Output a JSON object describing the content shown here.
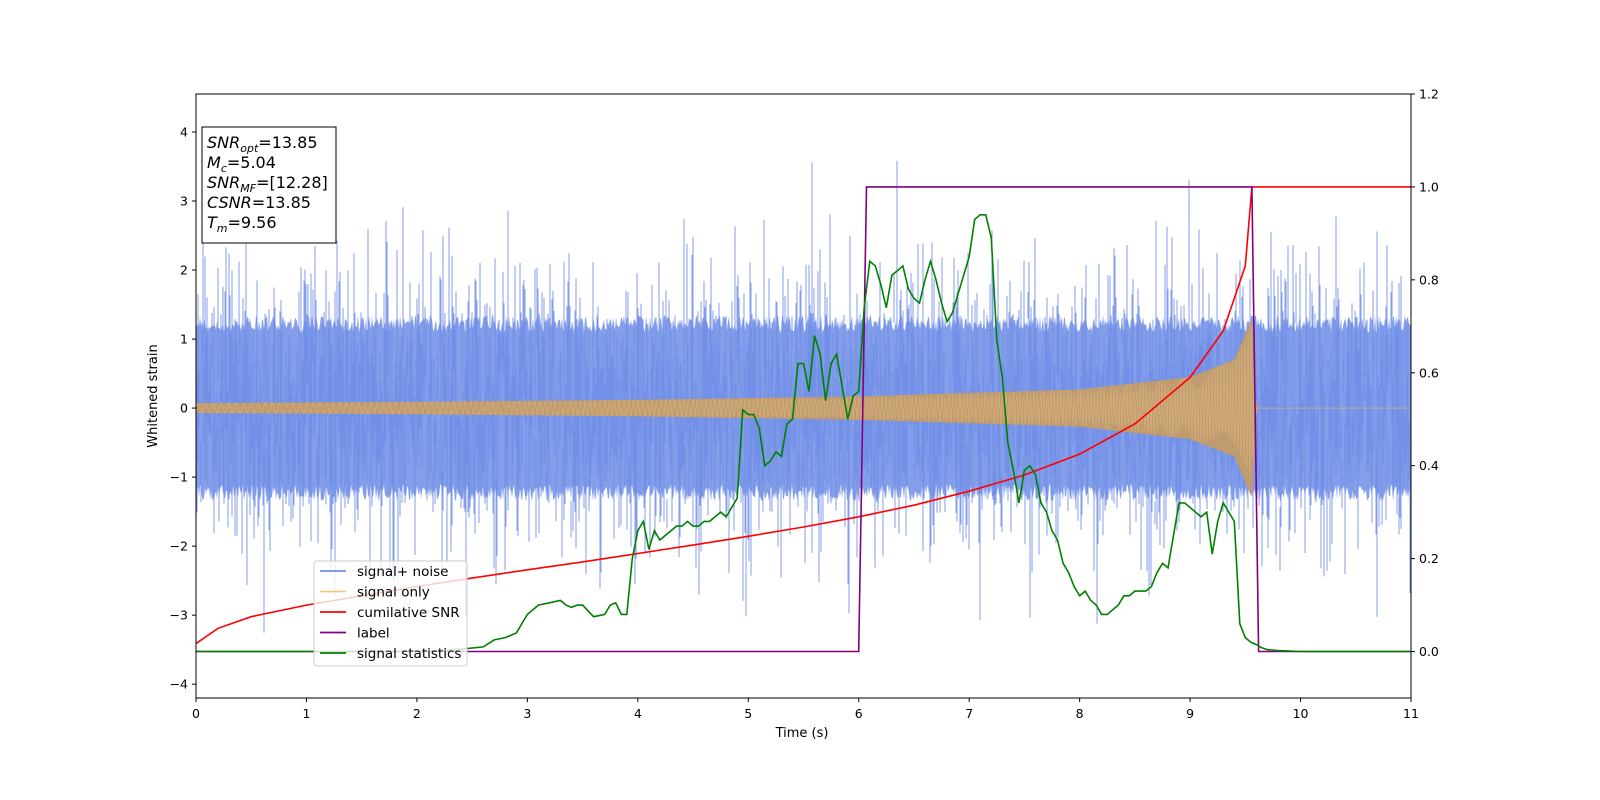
{
  "chart_data": {
    "type": "line",
    "title": "",
    "xlabel": "Time (s)",
    "ylabel": "Whitened strain",
    "y2label": "",
    "xlim": [
      0,
      11
    ],
    "ylim": [
      -4.2,
      4.55
    ],
    "y2lim": [
      -0.1,
      1.2
    ],
    "grid": false,
    "xticks": [
      "0",
      "1",
      "2",
      "3",
      "4",
      "5",
      "6",
      "7",
      "8",
      "9",
      "10",
      "11"
    ],
    "yticks": [
      "−4",
      "−3",
      "−2",
      "−1",
      "0",
      "1",
      "2",
      "3",
      "4"
    ],
    "y2ticks": [
      "0.0",
      "0.2",
      "0.4",
      "0.6",
      "0.8",
      "1.0",
      "1.2"
    ],
    "legend_position": "lower-left",
    "info_box": {
      "position": "upper-left",
      "lines": [
        {
          "name": "SNR",
          "sub": "opt",
          "value": "=13.85"
        },
        {
          "name": "M",
          "sub": "c",
          "value": "=5.04"
        },
        {
          "name": "SNR",
          "sub": "MF",
          "value": "=[12.28]"
        },
        {
          "name": "CSNR",
          "sub": "",
          "value": "=13.85"
        },
        {
          "name": "T",
          "sub": "m",
          "value": "=9.56"
        }
      ]
    },
    "series": [
      {
        "name": "signal+ noise",
        "axis": "left",
        "color": "#6f8de6",
        "style": "noise",
        "noise_sigma": 1.0,
        "noise_range": [
          -3.8,
          4.15
        ],
        "dense_sample_rate_hz": 200
      },
      {
        "name": "signal only",
        "axis": "left",
        "color": "#f5c47e",
        "fill_color": "#c09b6e",
        "style": "chirp",
        "t_start": 0,
        "t_merge": 9.56,
        "t_end": 11,
        "amplitude_envelope": [
          [
            0,
            0.07
          ],
          [
            2,
            0.09
          ],
          [
            4,
            0.12
          ],
          [
            6,
            0.17
          ],
          [
            8,
            0.27
          ],
          [
            9,
            0.45
          ],
          [
            9.4,
            0.7
          ],
          [
            9.56,
            1.3
          ],
          [
            9.6,
            0
          ]
        ]
      },
      {
        "name": "cumilative SNR",
        "axis": "right",
        "color": "#ff0000",
        "style": "line",
        "x": [
          0,
          0.2,
          0.5,
          1,
          1.5,
          2,
          2.5,
          3,
          3.5,
          4,
          4.5,
          5,
          5.5,
          6,
          6.5,
          7,
          7.5,
          8,
          8.5,
          9,
          9.3,
          9.5,
          9.56,
          9.6,
          10,
          11
        ],
        "y": [
          0.017,
          0.05,
          0.075,
          0.1,
          0.12,
          0.14,
          0.158,
          0.176,
          0.193,
          0.211,
          0.229,
          0.248,
          0.268,
          0.29,
          0.315,
          0.345,
          0.38,
          0.425,
          0.49,
          0.59,
          0.69,
          0.83,
          1.0,
          1.0,
          1.0,
          1.0
        ]
      },
      {
        "name": "label",
        "axis": "right",
        "color": "#800080",
        "style": "line",
        "x": [
          0,
          6.0,
          6.07,
          9.56,
          9.62,
          11
        ],
        "y": [
          0,
          0,
          1,
          1,
          0,
          0
        ]
      },
      {
        "name": "signal statistics",
        "axis": "right",
        "color": "#008000",
        "style": "line",
        "x": [
          0,
          0.5,
          1,
          1.5,
          2,
          2.4,
          2.6,
          2.7,
          2.8,
          2.9,
          3.0,
          3.1,
          3.2,
          3.3,
          3.35,
          3.4,
          3.45,
          3.5,
          3.6,
          3.7,
          3.75,
          3.8,
          3.85,
          3.9,
          3.95,
          4.0,
          4.05,
          4.1,
          4.15,
          4.2,
          4.25,
          4.3,
          4.35,
          4.4,
          4.45,
          4.5,
          4.55,
          4.6,
          4.65,
          4.7,
          4.75,
          4.8,
          4.85,
          4.9,
          4.95,
          5.0,
          5.05,
          5.1,
          5.15,
          5.2,
          5.25,
          5.3,
          5.35,
          5.4,
          5.45,
          5.5,
          5.55,
          5.6,
          5.65,
          5.7,
          5.75,
          5.8,
          5.85,
          5.9,
          5.95,
          6.0,
          6.05,
          6.1,
          6.15,
          6.2,
          6.25,
          6.3,
          6.35,
          6.4,
          6.45,
          6.5,
          6.55,
          6.6,
          6.65,
          6.7,
          6.75,
          6.8,
          6.85,
          6.9,
          6.95,
          7.0,
          7.05,
          7.1,
          7.15,
          7.2,
          7.25,
          7.3,
          7.35,
          7.4,
          7.45,
          7.5,
          7.55,
          7.6,
          7.65,
          7.7,
          7.75,
          7.8,
          7.85,
          7.9,
          7.95,
          8.0,
          8.05,
          8.1,
          8.15,
          8.2,
          8.25,
          8.3,
          8.35,
          8.4,
          8.45,
          8.5,
          8.55,
          8.6,
          8.65,
          8.7,
          8.75,
          8.8,
          8.85,
          8.9,
          8.95,
          9.0,
          9.05,
          9.1,
          9.15,
          9.2,
          9.25,
          9.3,
          9.35,
          9.4,
          9.45,
          9.5,
          9.55,
          9.6,
          9.65,
          9.7,
          9.8,
          10.0,
          10.5,
          11
        ],
        "y": [
          0.0,
          0.0,
          0.0,
          0.0,
          0.0,
          0.005,
          0.01,
          0.025,
          0.03,
          0.04,
          0.08,
          0.1,
          0.105,
          0.11,
          0.1,
          0.095,
          0.1,
          0.1,
          0.075,
          0.08,
          0.1,
          0.105,
          0.08,
          0.08,
          0.2,
          0.26,
          0.28,
          0.22,
          0.26,
          0.24,
          0.25,
          0.26,
          0.27,
          0.27,
          0.28,
          0.27,
          0.27,
          0.28,
          0.28,
          0.29,
          0.3,
          0.29,
          0.31,
          0.33,
          0.52,
          0.51,
          0.51,
          0.48,
          0.4,
          0.41,
          0.43,
          0.42,
          0.49,
          0.5,
          0.62,
          0.62,
          0.56,
          0.68,
          0.64,
          0.54,
          0.62,
          0.64,
          0.57,
          0.5,
          0.55,
          0.56,
          0.74,
          0.84,
          0.83,
          0.79,
          0.74,
          0.81,
          0.82,
          0.83,
          0.78,
          0.76,
          0.75,
          0.8,
          0.84,
          0.8,
          0.75,
          0.71,
          0.73,
          0.77,
          0.81,
          0.85,
          0.93,
          0.94,
          0.94,
          0.89,
          0.67,
          0.59,
          0.45,
          0.39,
          0.32,
          0.39,
          0.4,
          0.38,
          0.32,
          0.3,
          0.26,
          0.24,
          0.19,
          0.17,
          0.14,
          0.12,
          0.13,
          0.11,
          0.1,
          0.08,
          0.08,
          0.09,
          0.1,
          0.12,
          0.12,
          0.13,
          0.13,
          0.13,
          0.14,
          0.17,
          0.19,
          0.18,
          0.25,
          0.32,
          0.32,
          0.31,
          0.3,
          0.29,
          0.3,
          0.21,
          0.28,
          0.32,
          0.3,
          0.28,
          0.06,
          0.03,
          0.02,
          0.015,
          0.008,
          0.004,
          0.002,
          0.0,
          0.0,
          0.0
        ]
      }
    ]
  }
}
